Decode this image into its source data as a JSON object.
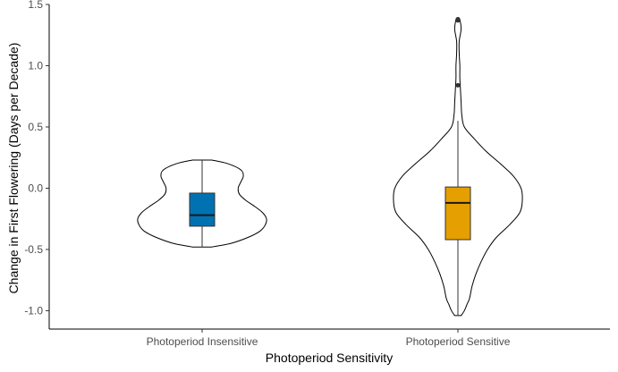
{
  "chart_data": {
    "type": "violin",
    "xlabel": "Photoperiod Sensitivity",
    "ylabel": "Change in First Flowering (Days per Decade)",
    "ylim": [
      -1.15,
      1.5
    ],
    "yticks": [
      -1.0,
      -0.5,
      0.0,
      0.5,
      1.0,
      1.5
    ],
    "ytick_labels": [
      "-1.0",
      "-0.5",
      "0.0",
      "0.5",
      "1.0",
      "1.5"
    ],
    "grid": false,
    "legend": "none",
    "categories": [
      "Photoperiod Insensitive",
      "Photoperiod Sensitive"
    ],
    "groups": [
      {
        "category": "Photoperiod Insensitive",
        "color": "#0072B2",
        "violin": {
          "y": [
            -0.48,
            -0.45,
            -0.4,
            -0.35,
            -0.3,
            -0.25,
            -0.2,
            -0.15,
            -0.1,
            -0.05,
            0.0,
            0.05,
            0.1,
            0.15,
            0.2,
            0.23
          ],
          "width": [
            0.15,
            0.45,
            0.72,
            0.9,
            0.98,
            1.0,
            0.94,
            0.82,
            0.68,
            0.58,
            0.56,
            0.6,
            0.64,
            0.6,
            0.4,
            0.15
          ]
        },
        "box": {
          "min": -0.48,
          "q1": -0.31,
          "median": -0.22,
          "q3": -0.04,
          "max": 0.23
        },
        "outliers": []
      },
      {
        "category": "Photoperiod Sensitive",
        "color": "#E69F00",
        "violin": {
          "y": [
            -1.04,
            -1.0,
            -0.95,
            -0.9,
            -0.8,
            -0.7,
            -0.6,
            -0.5,
            -0.4,
            -0.3,
            -0.2,
            -0.1,
            0.0,
            0.1,
            0.2,
            0.3,
            0.4,
            0.5,
            0.6,
            0.7,
            0.8,
            0.9,
            1.0,
            1.1,
            1.2,
            1.3,
            1.38
          ],
          "width": [
            0.05,
            0.1,
            0.14,
            0.18,
            0.22,
            0.28,
            0.36,
            0.46,
            0.6,
            0.8,
            0.96,
            1.0,
            0.98,
            0.86,
            0.66,
            0.44,
            0.26,
            0.1,
            0.06,
            0.05,
            0.04,
            0.03,
            0.03,
            0.02,
            0.02,
            0.05,
            0.03
          ]
        },
        "box": {
          "min": -1.04,
          "q1": -0.42,
          "median": -0.12,
          "q3": 0.01,
          "max": 0.55
        },
        "outliers": [
          0.84,
          1.37,
          1.38
        ]
      }
    ]
  }
}
